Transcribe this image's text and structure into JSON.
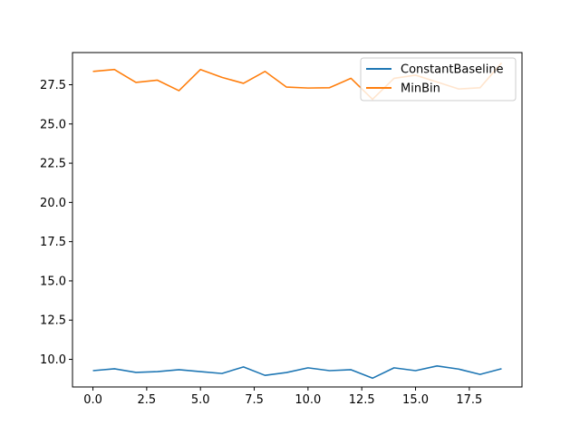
{
  "chart_data": {
    "type": "line",
    "title": "",
    "xlabel": "",
    "ylabel": "",
    "x": [
      0,
      1,
      2,
      3,
      4,
      5,
      6,
      7,
      8,
      9,
      10,
      11,
      12,
      13,
      14,
      15,
      16,
      17,
      18,
      19
    ],
    "xlim": [
      -0.95,
      19.95
    ],
    "ylim": [
      8.24,
      29.55
    ],
    "xticks": [
      0.0,
      2.5,
      5.0,
      7.5,
      10.0,
      12.5,
      15.0,
      17.5
    ],
    "xtick_labels": [
      "0.0",
      "2.5",
      "5.0",
      "7.5",
      "10.0",
      "12.5",
      "15.0",
      "17.5"
    ],
    "yticks": [
      10.0,
      12.5,
      15.0,
      17.5,
      20.0,
      22.5,
      25.0,
      27.5
    ],
    "ytick_labels": [
      "10.0",
      "12.5",
      "15.0",
      "17.5",
      "20.0",
      "22.5",
      "25.0",
      "27.5"
    ],
    "grid": false,
    "legend_position": "upper right",
    "series": [
      {
        "name": "ConstantBaseline",
        "color": "#1f77b4",
        "values": [
          9.28,
          9.4,
          9.17,
          9.22,
          9.34,
          9.22,
          9.1,
          9.52,
          8.98,
          9.16,
          9.46,
          9.28,
          9.34,
          8.8,
          9.46,
          9.28,
          9.58,
          9.38,
          9.04,
          9.4
        ]
      },
      {
        "name": "MinBin",
        "color": "#ff7f0e",
        "values": [
          28.35,
          28.47,
          27.65,
          27.79,
          27.12,
          28.47,
          27.97,
          27.59,
          28.35,
          27.35,
          27.29,
          27.31,
          27.91,
          26.57,
          27.91,
          28.11,
          27.67,
          27.23,
          27.31,
          28.89
        ]
      }
    ]
  }
}
